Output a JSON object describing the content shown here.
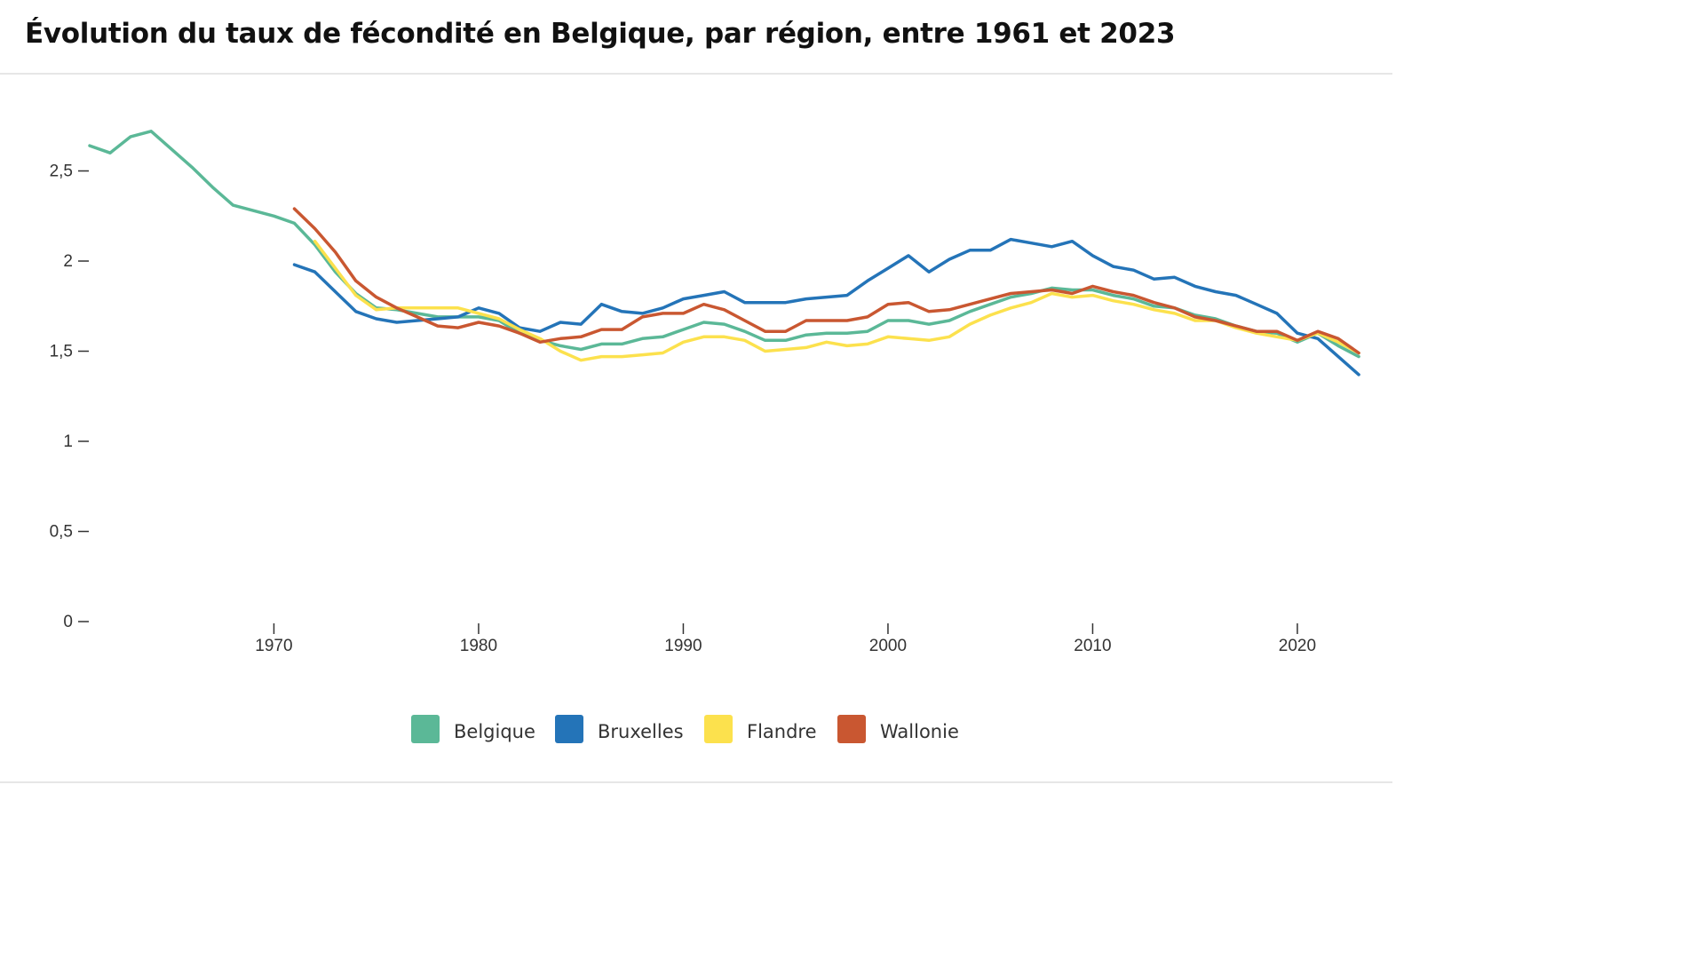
{
  "title": "Évolution du taux de fécondité en Belgique, par région, entre 1961 et 2023",
  "chart_data": {
    "type": "line",
    "title": "Évolution du taux de fécondité en Belgique, par région, entre 1961 et 2023",
    "xlabel": "",
    "ylabel": "",
    "xlim": [
      1961,
      2023
    ],
    "ylim": [
      0,
      2.8
    ],
    "x_ticks": [
      1970,
      1980,
      1990,
      2000,
      2010,
      2020
    ],
    "x_tick_labels": [
      "1970",
      "1980",
      "1990",
      "2000",
      "2010",
      "2020"
    ],
    "y_ticks": [
      0,
      0.5,
      1,
      1.5,
      2,
      2.5
    ],
    "y_tick_labels": [
      "0",
      "0,5",
      "1",
      "1,5",
      "2",
      "2,5"
    ],
    "grid": false,
    "legend_position": "bottom",
    "series": [
      {
        "name": "Belgique",
        "color": "#5bb897",
        "x_start": 1961,
        "values": [
          2.64,
          2.6,
          2.69,
          2.72,
          2.62,
          2.52,
          2.41,
          2.31,
          2.28,
          2.25,
          2.21,
          2.09,
          1.94,
          1.82,
          1.74,
          1.73,
          1.71,
          1.69,
          1.69,
          1.69,
          1.67,
          1.6,
          1.56,
          1.53,
          1.51,
          1.54,
          1.54,
          1.57,
          1.58,
          1.62,
          1.66,
          1.65,
          1.61,
          1.56,
          1.56,
          1.59,
          1.6,
          1.6,
          1.61,
          1.67,
          1.67,
          1.65,
          1.67,
          1.72,
          1.76,
          1.8,
          1.82,
          1.85,
          1.84,
          1.84,
          1.81,
          1.79,
          1.75,
          1.74,
          1.7,
          1.68,
          1.64,
          1.61,
          1.6,
          1.55,
          1.6,
          1.53,
          1.47
        ]
      },
      {
        "name": "Bruxelles",
        "color": "#2474b8",
        "x_start": 1971,
        "values": [
          1.98,
          1.94,
          1.83,
          1.72,
          1.68,
          1.66,
          1.67,
          1.68,
          1.69,
          1.74,
          1.71,
          1.63,
          1.61,
          1.66,
          1.65,
          1.76,
          1.72,
          1.71,
          1.74,
          1.79,
          1.81,
          1.83,
          1.77,
          1.77,
          1.77,
          1.79,
          1.8,
          1.81,
          1.89,
          1.96,
          2.03,
          1.94,
          2.01,
          2.06,
          2.06,
          2.12,
          2.1,
          2.08,
          2.11,
          2.03,
          1.97,
          1.95,
          1.9,
          1.91,
          1.86,
          1.83,
          1.81,
          1.76,
          1.71,
          1.6,
          1.57,
          1.47,
          1.37
        ]
      },
      {
        "name": "Flandre",
        "color": "#fce14d",
        "x_start": 1972,
        "values": [
          2.11,
          1.96,
          1.81,
          1.73,
          1.74,
          1.74,
          1.74,
          1.74,
          1.71,
          1.68,
          1.62,
          1.57,
          1.5,
          1.45,
          1.47,
          1.47,
          1.48,
          1.49,
          1.55,
          1.58,
          1.58,
          1.56,
          1.5,
          1.51,
          1.52,
          1.55,
          1.53,
          1.54,
          1.58,
          1.57,
          1.56,
          1.58,
          1.65,
          1.7,
          1.74,
          1.77,
          1.82,
          1.8,
          1.81,
          1.78,
          1.76,
          1.73,
          1.71,
          1.67,
          1.67,
          1.63,
          1.6,
          1.58,
          1.56,
          1.6,
          1.55,
          1.49
        ]
      },
      {
        "name": "Wallonie",
        "color": "#c95731",
        "x_start": 1971,
        "values": [
          2.29,
          2.18,
          2.05,
          1.89,
          1.8,
          1.74,
          1.69,
          1.64,
          1.63,
          1.66,
          1.64,
          1.6,
          1.55,
          1.57,
          1.58,
          1.62,
          1.62,
          1.69,
          1.71,
          1.71,
          1.76,
          1.73,
          1.67,
          1.61,
          1.61,
          1.67,
          1.67,
          1.67,
          1.69,
          1.76,
          1.77,
          1.72,
          1.73,
          1.76,
          1.79,
          1.82,
          1.83,
          1.84,
          1.82,
          1.86,
          1.83,
          1.81,
          1.77,
          1.74,
          1.69,
          1.67,
          1.64,
          1.61,
          1.61,
          1.56,
          1.61,
          1.57,
          1.49
        ]
      }
    ]
  }
}
